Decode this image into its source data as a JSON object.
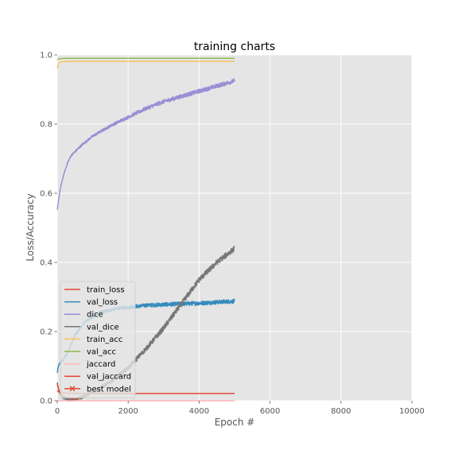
{
  "chart_data": {
    "type": "line",
    "title": "training charts",
    "xlabel": "Epoch #",
    "ylabel": "Loss/Accuracy",
    "xlim": [
      0,
      10000
    ],
    "ylim": [
      0,
      1.0
    ],
    "xticks": [
      0,
      2000,
      4000,
      6000,
      8000,
      10000
    ],
    "yticks": [
      0.0,
      0.2,
      0.4,
      0.6,
      0.8,
      1.0
    ],
    "ytick_labels": [
      "0.0",
      "0.2",
      "0.4",
      "0.6",
      "0.8",
      "1.0"
    ],
    "grid": true,
    "legend_position": "lower-left",
    "background": "#e5e5e5",
    "series": [
      {
        "name": "train_loss",
        "color": "#e24a33",
        "noise": 0.0,
        "x": [
          0,
          30,
          80,
          150,
          250,
          400,
          700,
          1000,
          2000,
          3000,
          4000,
          5000
        ],
        "y": [
          0.03,
          0.026,
          0.024,
          0.023,
          0.022,
          0.022,
          0.021,
          0.021,
          0.021,
          0.021,
          0.021,
          0.021
        ]
      },
      {
        "name": "val_loss",
        "color": "#348abd",
        "noise": 0.006,
        "x": [
          0,
          30,
          80,
          150,
          300,
          500,
          800,
          1200,
          1600,
          2000,
          2500,
          3000,
          3500,
          4000,
          4500,
          5000
        ],
        "y": [
          0.08,
          0.1,
          0.11,
          0.115,
          0.14,
          0.19,
          0.23,
          0.255,
          0.265,
          0.27,
          0.276,
          0.278,
          0.28,
          0.282,
          0.285,
          0.288
        ]
      },
      {
        "name": "dice",
        "color": "#988ed5",
        "noise": 0.006,
        "x": [
          0,
          50,
          100,
          200,
          300,
          400,
          500,
          700,
          1000,
          1500,
          2000,
          2500,
          3000,
          3500,
          4000,
          4500,
          5000
        ],
        "y": [
          0.55,
          0.59,
          0.62,
          0.66,
          0.69,
          0.71,
          0.72,
          0.74,
          0.765,
          0.795,
          0.82,
          0.845,
          0.865,
          0.88,
          0.895,
          0.91,
          0.925
        ]
      },
      {
        "name": "val_dice",
        "color": "#777777",
        "noise": 0.008,
        "x": [
          0,
          50,
          100,
          200,
          300,
          400,
          500,
          700,
          1000,
          1500,
          2000,
          2500,
          3000,
          3500,
          4000,
          4500,
          5000
        ],
        "y": [
          0.05,
          0.03,
          0.015,
          0.006,
          0.003,
          0.003,
          0.004,
          0.01,
          0.025,
          0.055,
          0.095,
          0.15,
          0.21,
          0.28,
          0.35,
          0.4,
          0.44
        ]
      },
      {
        "name": "train_acc",
        "color": "#fbc15e",
        "noise": 0.0,
        "x": [
          0,
          30,
          80,
          150,
          300,
          1000,
          5000
        ],
        "y": [
          0.96,
          0.975,
          0.979,
          0.98,
          0.981,
          0.981,
          0.981
        ]
      },
      {
        "name": "val_acc",
        "color": "#8eba42",
        "noise": 0.0,
        "x": [
          0,
          30,
          80,
          200,
          1000,
          5000
        ],
        "y": [
          0.985,
          0.988,
          0.989,
          0.99,
          0.99,
          0.99
        ]
      },
      {
        "name": "jaccard",
        "color": "#ffb5b8",
        "noise": 0.0,
        "x": [
          0,
          5000
        ],
        "y": [
          0.0,
          0.0
        ]
      },
      {
        "name": "val_jaccard",
        "color": "#e24a33",
        "noise": 0.0,
        "x": [
          0,
          30,
          80,
          150,
          250,
          400,
          600
        ],
        "y": [
          0.05,
          0.035,
          0.022,
          0.015,
          0.01,
          0.007,
          0.005
        ]
      }
    ],
    "best_model": {
      "name": "best model",
      "color": "#e24a33",
      "marker": "x",
      "points": []
    }
  }
}
